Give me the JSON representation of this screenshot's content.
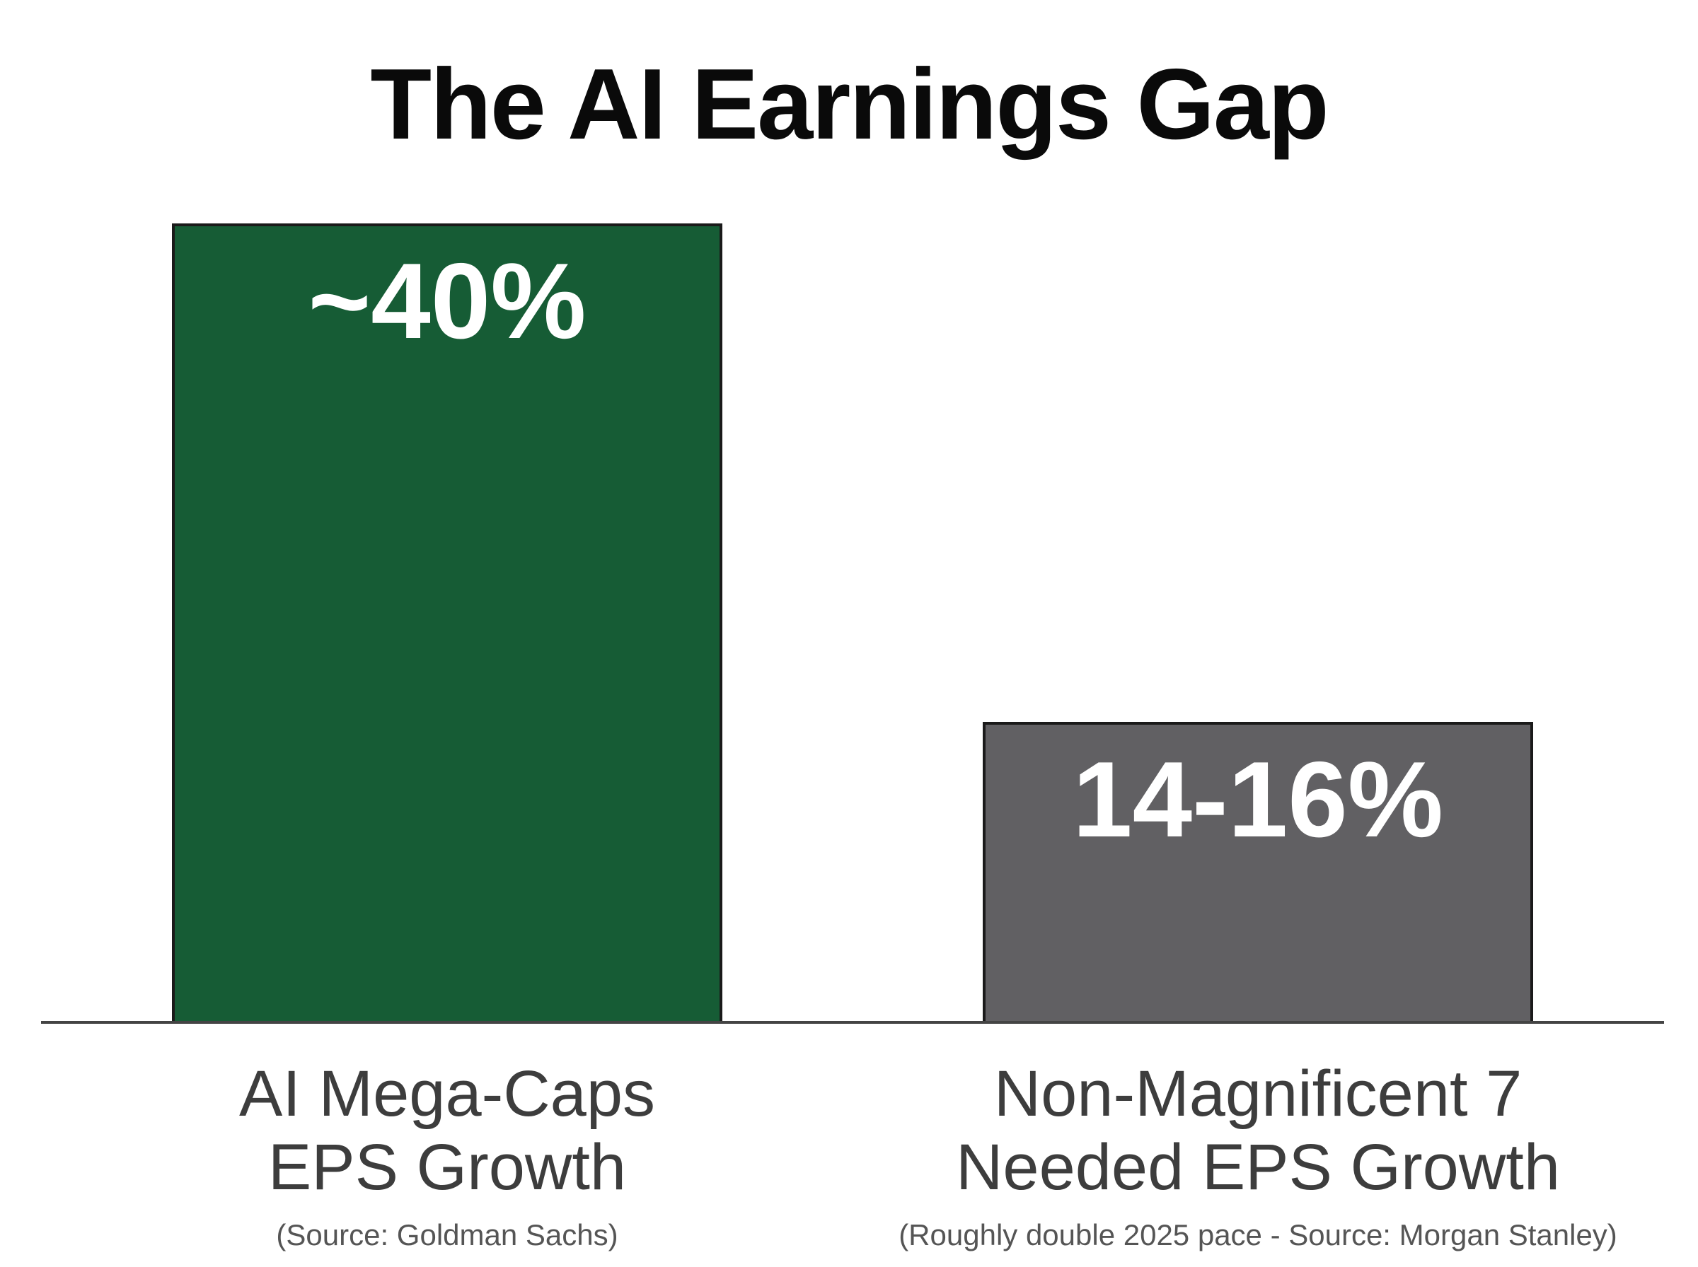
{
  "chart_data": {
    "type": "bar",
    "title": "The AI Earnings Gap",
    "categories": [
      [
        "AI Mega-Caps",
        "EPS Growth"
      ],
      [
        "Non-Magnificent 7",
        "Needed EPS Growth"
      ]
    ],
    "category_notes": [
      "(Source: Goldman Sachs)",
      "(Roughly double 2025 pace - Source: Morgan Stanley)"
    ],
    "values": [
      40,
      15
    ],
    "data_labels": [
      "~40%",
      "14-16%"
    ],
    "bar_colors": [
      "#165c35",
      "#616063"
    ],
    "bar_border_color": "#1a1a1a",
    "label_color": "#ffffff",
    "baseline_color": "#444444",
    "ylim": [
      0,
      40
    ],
    "grid": false,
    "axes_visible": false
  }
}
